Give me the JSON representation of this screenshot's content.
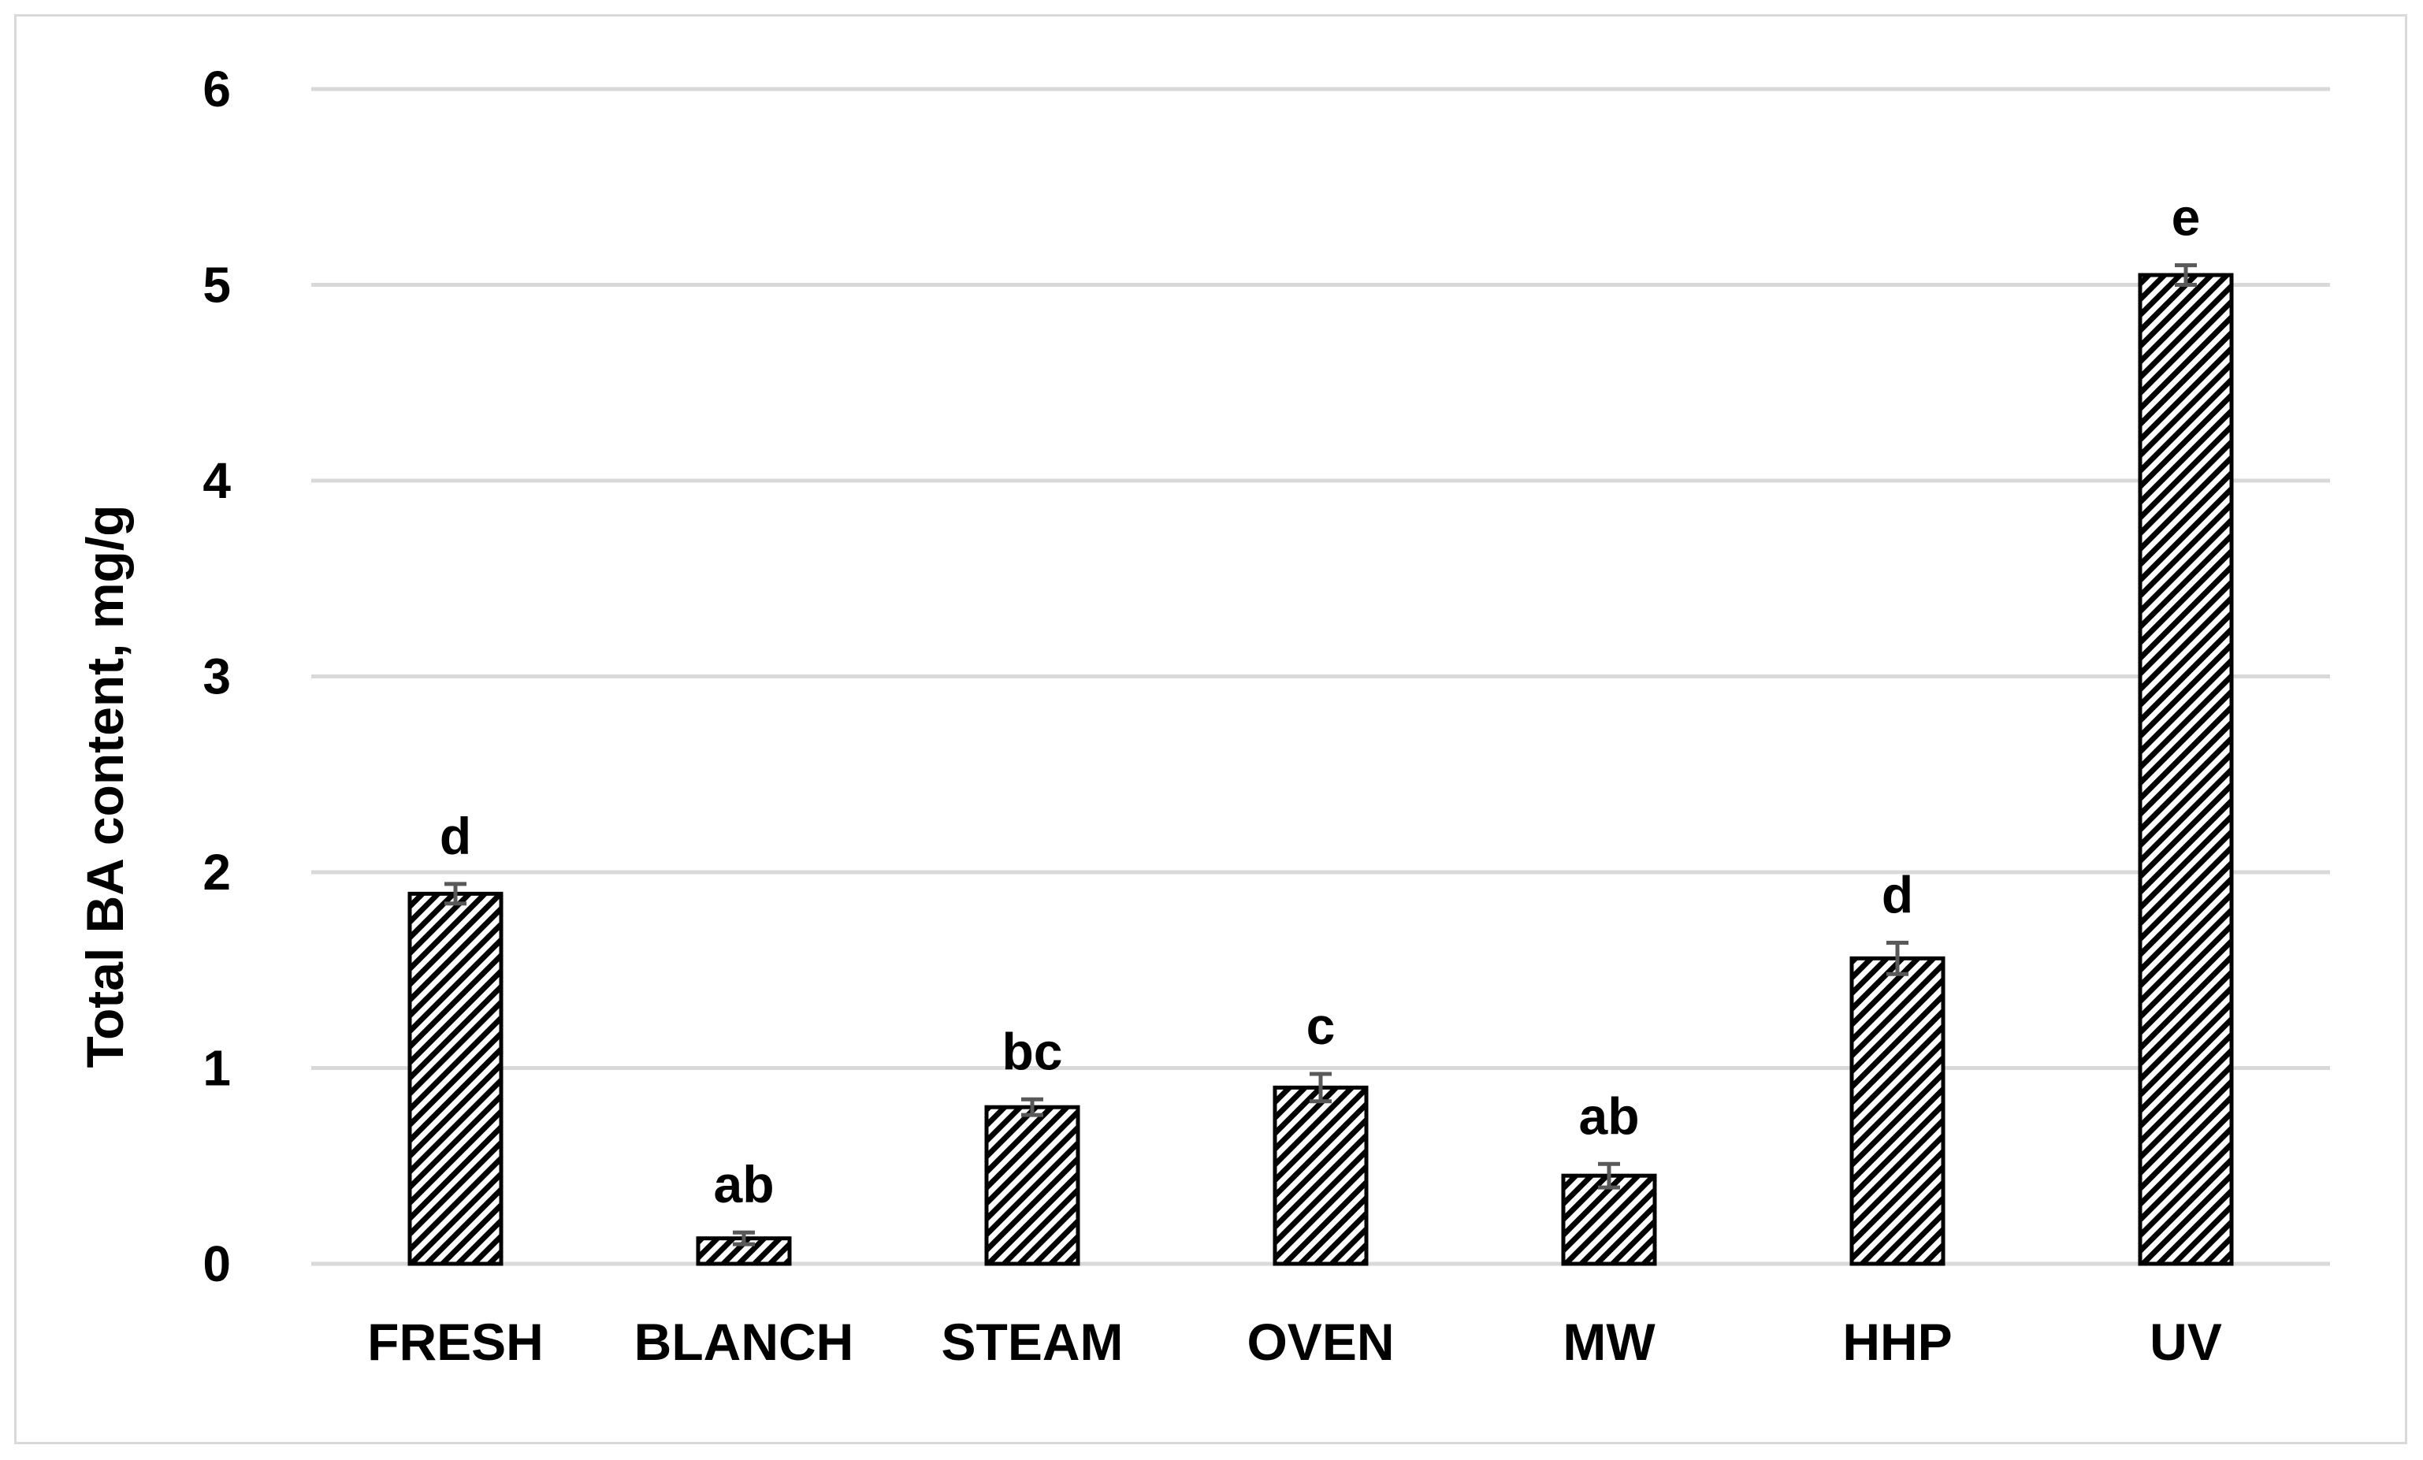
{
  "chart_data": {
    "type": "bar",
    "title": "",
    "xlabel": "",
    "ylabel": "Total BA content, mg/g",
    "ylim": [
      0,
      6
    ],
    "yticks": [
      0,
      1,
      2,
      3,
      4,
      5,
      6
    ],
    "grid": true,
    "legend": "none",
    "bar_pattern": "diagonal-hatch",
    "colors": {
      "bar_stroke": "#000000",
      "hatch": "#000000",
      "bar_fill": "#ffffff",
      "grid": "#d9d9d9",
      "error_bar": "#595959"
    },
    "categories": [
      "FRESH",
      "BLANCH",
      "STEAM",
      "OVEN",
      "MW",
      "HHP",
      "UV"
    ],
    "values": [
      1.89,
      0.13,
      0.8,
      0.9,
      0.45,
      1.56,
      5.05
    ],
    "errors": [
      0.05,
      0.03,
      0.04,
      0.07,
      0.06,
      0.08,
      0.05
    ],
    "annotations": [
      "d",
      "ab",
      "bc",
      "c",
      "ab",
      "d",
      "e"
    ]
  }
}
